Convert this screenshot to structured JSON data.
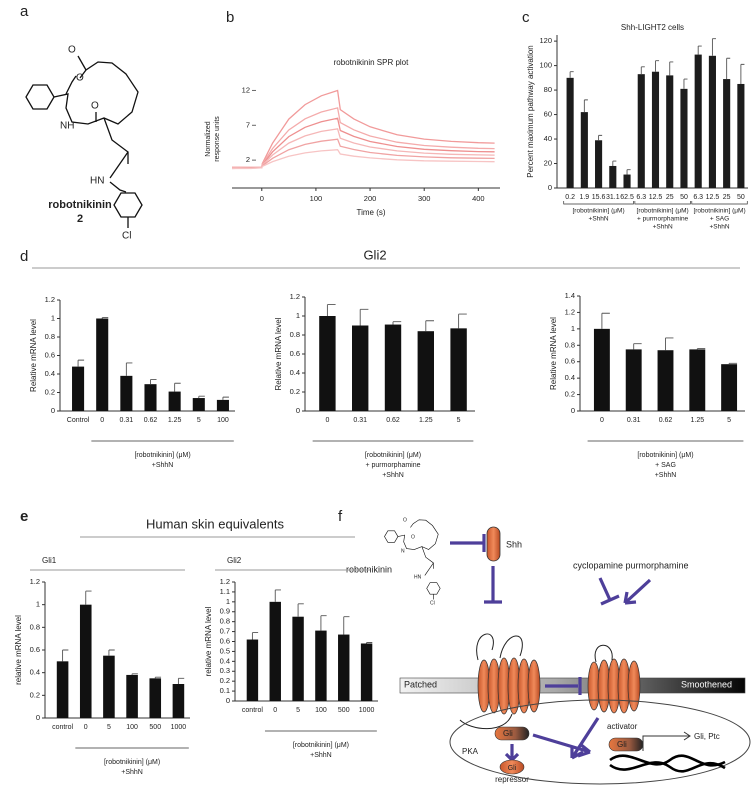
{
  "panel_labels": [
    "a",
    "b",
    "c",
    "d",
    "e",
    "f"
  ],
  "compound": {
    "atoms": [
      "O",
      "O",
      "NH",
      "O",
      "HN",
      "Cl"
    ],
    "name": "robotnikinin",
    "number": "2"
  },
  "headings": {
    "d": "Gli2",
    "e": "Human skin equivalents"
  },
  "chart_data": [
    {
      "type": "line",
      "title": "robotnikinin SPR plot",
      "ylabel": [
        "Normalized",
        "response units"
      ],
      "xlabel": "Time (s)",
      "x": [
        -55,
        -20,
        0,
        1,
        20,
        50,
        80,
        110,
        140,
        145,
        170,
        200,
        250,
        300,
        350,
        400,
        430
      ],
      "xlim": [
        -55,
        440
      ],
      "xticks": [
        0,
        100,
        200,
        300,
        400
      ],
      "ylim": [
        -2,
        13.5
      ],
      "yticks": [
        2,
        7,
        12
      ],
      "series": [
        {
          "color": "#f19a9a",
          "values": [
            1,
            1,
            1,
            1.5,
            4.45,
            7.89,
            9.97,
            11.23,
            12,
            9.25,
            7.92,
            6.79,
            5.63,
            5.02,
            4.69,
            4.5,
            4.44
          ]
        },
        {
          "color": "#f4abab",
          "values": [
            1,
            1,
            1,
            1.4,
            3.67,
            6.32,
            7.93,
            8.91,
            9.5,
            7.38,
            6.35,
            5.47,
            4.58,
            4.1,
            3.85,
            3.7,
            3.66
          ]
        },
        {
          "color": "#ee8f8f",
          "values": [
            0.9,
            0.9,
            1,
            1.3,
            3.2,
            5.38,
            6.71,
            7.51,
            8,
            6.25,
            5.4,
            4.68,
            3.95,
            3.56,
            3.35,
            3.23,
            3.19
          ]
        },
        {
          "color": "#f5b7b7",
          "values": [
            0.9,
            1,
            1,
            1.3,
            2.73,
            4.44,
            5.48,
            6.12,
            6.5,
            5.13,
            4.46,
            3.89,
            3.32,
            3.01,
            2.84,
            2.75,
            2.72
          ]
        },
        {
          "color": "#f0a3a3",
          "values": [
            0.8,
            0.9,
            0.9,
            1.2,
            2.26,
            3.5,
            4.26,
            4.72,
            5,
            4,
            3.52,
            3.1,
            2.68,
            2.46,
            2.34,
            2.27,
            2.25
          ]
        },
        {
          "color": "#f7c4c4",
          "values": [
            0.8,
            0.8,
            0.9,
            1.1,
            1.79,
            2.57,
            3.04,
            3.33,
            3.5,
            2.88,
            2.57,
            2.32,
            2.05,
            1.91,
            1.84,
            1.8,
            1.78
          ]
        }
      ]
    },
    {
      "type": "bar",
      "title": "Shh-LIGHT2 cells",
      "ylabel": "Percent maximum pathway activation",
      "color": "#1c1c1c",
      "ylim": [
        0,
        125
      ],
      "yticks": [
        0,
        20,
        40,
        60,
        80,
        100,
        120
      ],
      "groups": [
        {
          "label": [
            "[robotnikinin] (μM)",
            "+ShhN"
          ],
          "categories": [
            "0.2",
            "1.9",
            "15.6",
            "31.1",
            "62.5"
          ],
          "values": [
            90,
            62,
            39,
            18,
            11
          ],
          "errors": [
            5,
            10,
            4,
            4,
            4
          ]
        },
        {
          "label": [
            "[robotnikinin] (μM)",
            "+ purmorphamine",
            "+ShhN"
          ],
          "categories": [
            "6.3",
            "12.5",
            "25",
            "50"
          ],
          "values": [
            93,
            95,
            92,
            81
          ],
          "errors": [
            6,
            9,
            11,
            8
          ]
        },
        {
          "label": [
            "[robotnikinin] (μM)",
            "+ SAG",
            "+ShhN"
          ],
          "categories": [
            "6.3",
            "12.5",
            "25",
            "50"
          ],
          "values": [
            109,
            108,
            89,
            85
          ],
          "errors": [
            7,
            14,
            17,
            16
          ]
        }
      ]
    },
    {
      "type": "bar",
      "ylabel": "Relative mRNA level",
      "xlabel": [
        "[robotnikinin] (μM)",
        "+ShhN"
      ],
      "color": "#111111",
      "categories": [
        "Control",
        "0",
        "0.31",
        "0.62",
        "1.25",
        "5",
        "100"
      ],
      "values": [
        0.48,
        1.0,
        0.38,
        0.29,
        0.21,
        0.14,
        0.12
      ],
      "errors": [
        0.07,
        0.01,
        0.14,
        0.05,
        0.09,
        0.02,
        0.03
      ],
      "ylim": [
        0,
        1.2
      ],
      "yticks": [
        0,
        0.2,
        0.4,
        0.6,
        0.8,
        1,
        1.2
      ]
    },
    {
      "type": "bar",
      "ylabel": "Relative mRNA level",
      "xlabel": [
        "[robotnikinin] (μM)",
        "+ purmorphamine",
        "+ShhN"
      ],
      "color": "#111111",
      "categories": [
        "0",
        "0.31",
        "0.62",
        "1.25",
        "5"
      ],
      "values": [
        1.0,
        0.9,
        0.91,
        0.84,
        0.87
      ],
      "errors": [
        0.12,
        0.17,
        0.03,
        0.11,
        0.15
      ],
      "ylim": [
        0,
        1.2
      ],
      "yticks": [
        0,
        0.2,
        0.4,
        0.6,
        0.8,
        1,
        1.2
      ]
    },
    {
      "type": "bar",
      "ylabel": "Relative mRNA level",
      "xlabel": [
        "[robotnikinin] (μM)",
        "+ SAG",
        "+ShhN"
      ],
      "color": "#111111",
      "categories": [
        "0",
        "0.31",
        "0.62",
        "1.25",
        "5"
      ],
      "values": [
        1.0,
        0.75,
        0.74,
        0.75,
        0.57
      ],
      "errors": [
        0.19,
        0.07,
        0.15,
        0.01,
        0.01
      ],
      "ylim": [
        0,
        1.4
      ],
      "yticks": [
        0,
        0.2,
        0.4,
        0.6,
        0.8,
        1,
        1.2,
        1.4
      ]
    },
    {
      "type": "bar",
      "title": "Gli1",
      "ylabel": "relative mRNA level",
      "xlabel": [
        "[robotnikinin] (μM)",
        "+ShhN"
      ],
      "color": "#111111",
      "categories": [
        "control",
        "0",
        "5",
        "100",
        "500",
        "1000"
      ],
      "values": [
        0.5,
        1.0,
        0.55,
        0.38,
        0.35,
        0.3
      ],
      "errors": [
        0.1,
        0.12,
        0.05,
        0.01,
        0.01,
        0.05
      ],
      "ylim": [
        0,
        1.2
      ],
      "yticks": [
        0,
        0.2,
        0.4,
        0.6,
        0.8,
        1,
        1.2
      ]
    },
    {
      "type": "bar",
      "title": "Gli2",
      "ylabel": "relative mRNA level",
      "xlabel": [
        "[robotnikinin] (μM)",
        "+ShhN"
      ],
      "color": "#111111",
      "categories": [
        "control",
        "0",
        "5",
        "100",
        "500",
        "1000"
      ],
      "values": [
        0.62,
        1.0,
        0.85,
        0.71,
        0.67,
        0.58
      ],
      "errors": [
        0.07,
        0.12,
        0.13,
        0.15,
        0.18,
        0.01
      ],
      "ylim": [
        0,
        1.2
      ],
      "yticks": [
        0,
        0.1,
        0.2,
        0.3,
        0.4,
        0.5,
        0.6,
        0.7,
        0.8,
        0.9,
        1,
        1.1,
        1.2
      ]
    }
  ],
  "diagram": {
    "atoms": [
      "O",
      "O",
      "N",
      "HN",
      "Cl"
    ],
    "compound": "robotnikinin",
    "ligand": "Shh",
    "antagonist": "cyclopamine",
    "agonist": "purmorphamine",
    "receptor": "Patched",
    "transducer": "Smoothened",
    "factor": "Gli",
    "kinase": "PKA",
    "repressor_factor": "Gli",
    "repressor": "repressor",
    "activator": "activator",
    "activator_factor": "Gli",
    "targets": "Gli, Ptc"
  }
}
